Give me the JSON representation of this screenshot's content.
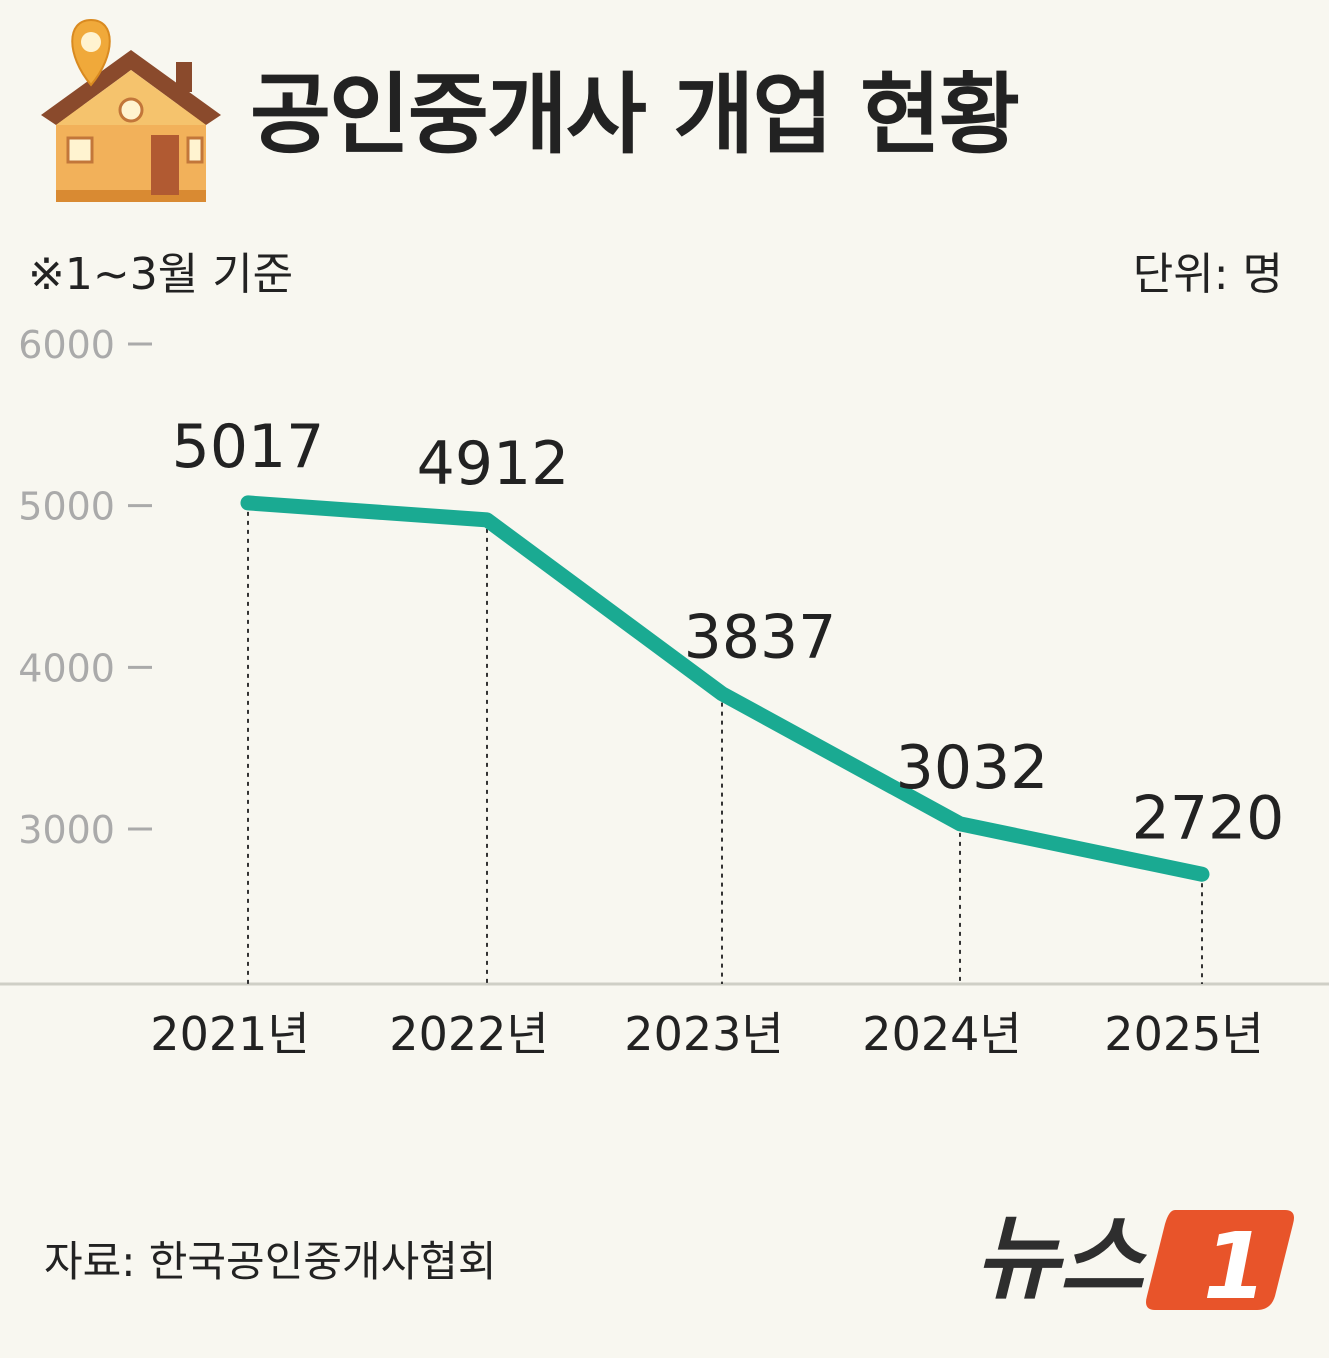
{
  "title": "공인중개사 개업 현황",
  "note": "※1~3월 기준",
  "unit": "단위: 명",
  "source": "자료: 한국공인중개사협회",
  "logo": {
    "text": "뉴스",
    "mark": "1"
  },
  "icon": "house-location-icon",
  "colors": {
    "line": "#1aaa92",
    "background": "#f8f7f0",
    "logo_accent": "#e8542a",
    "axis_tick": "#aaaaaa"
  },
  "chart_data": {
    "type": "line",
    "categories": [
      "2021년",
      "2022년",
      "2023년",
      "2024년",
      "2025년"
    ],
    "series": [
      {
        "values": [
          5017,
          4912,
          3837,
          3032,
          2720
        ]
      }
    ],
    "data_labels": [
      "5017",
      "4912",
      "3837",
      "3032",
      "2720"
    ],
    "yticks": [
      6000,
      5000,
      4000,
      3000
    ],
    "ylim": [
      2000,
      6000
    ],
    "grid": false,
    "title": "공인중개사 개업 현황"
  }
}
